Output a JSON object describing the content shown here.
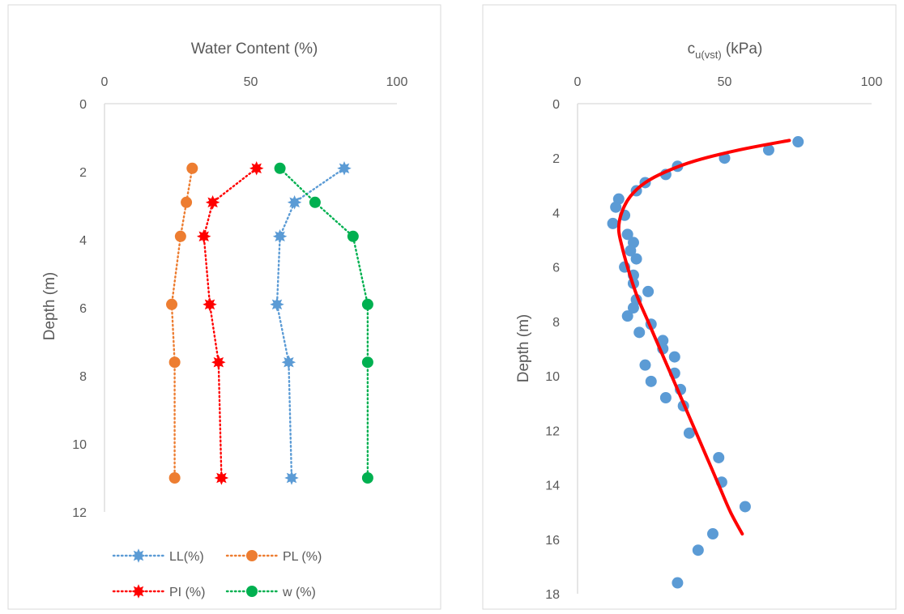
{
  "chart_data": [
    {
      "type": "line",
      "title": "Water Content (%)",
      "xlabel": "Water Content (%)",
      "ylabel": "Depth (m)",
      "x_axis_position": "top",
      "y_axis_reversed": true,
      "xlim": [
        0,
        100
      ],
      "ylim": [
        0,
        12
      ],
      "x_ticks": [
        0,
        50,
        100
      ],
      "y_ticks": [
        0,
        2,
        4,
        6,
        8,
        10,
        12
      ],
      "legend_position": "bottom",
      "grid": false,
      "series": [
        {
          "name": "LL(%)",
          "color": "#5b9bd5",
          "marker": "star",
          "line": "dotted",
          "points": [
            [
              82,
              1.9
            ],
            [
              65,
              2.9
            ],
            [
              60,
              3.9
            ],
            [
              59,
              5.9
            ],
            [
              63,
              7.6
            ],
            [
              64,
              11.0
            ]
          ]
        },
        {
          "name": "PL (%)",
          "color": "#ed7d31",
          "marker": "circle",
          "line": "dotted",
          "points": [
            [
              30,
              1.9
            ],
            [
              28,
              2.9
            ],
            [
              26,
              3.9
            ],
            [
              23,
              5.9
            ],
            [
              24,
              7.6
            ],
            [
              24,
              11.0
            ]
          ]
        },
        {
          "name": "PI (%)",
          "color": "#ff0000",
          "marker": "star",
          "line": "dotted",
          "points": [
            [
              52,
              1.9
            ],
            [
              37,
              2.9
            ],
            [
              34,
              3.9
            ],
            [
              36,
              5.9
            ],
            [
              39,
              7.6
            ],
            [
              40,
              11.0
            ]
          ]
        },
        {
          "name": "w (%)",
          "color": "#00b050",
          "marker": "circle",
          "line": "dotted",
          "points": [
            [
              60,
              1.9
            ],
            [
              72,
              2.9
            ],
            [
              85,
              3.9
            ],
            [
              90,
              5.9
            ],
            [
              90,
              7.6
            ],
            [
              90,
              11.0
            ]
          ]
        }
      ]
    },
    {
      "type": "scatter",
      "title_main": "c",
      "title_sub": "u(vst)",
      "title_unit": " (kPa)",
      "ylabel": "Depth (m)",
      "x_axis_position": "top",
      "y_axis_reversed": true,
      "xlim": [
        0,
        100
      ],
      "ylim": [
        0,
        18
      ],
      "x_ticks": [
        0,
        50,
        100
      ],
      "y_ticks": [
        0,
        2,
        4,
        6,
        8,
        10,
        12,
        14,
        16,
        18
      ],
      "grid": false,
      "points_color": "#5b9bd5",
      "trend_color": "#ff0000",
      "points": [
        [
          75,
          1.4
        ],
        [
          65,
          1.7
        ],
        [
          50,
          2.0
        ],
        [
          34,
          2.3
        ],
        [
          30,
          2.6
        ],
        [
          23,
          2.9
        ],
        [
          20,
          3.2
        ],
        [
          14,
          3.5
        ],
        [
          13,
          3.8
        ],
        [
          16,
          4.1
        ],
        [
          12,
          4.4
        ],
        [
          17,
          4.8
        ],
        [
          19,
          5.1
        ],
        [
          18,
          5.4
        ],
        [
          20,
          5.7
        ],
        [
          16,
          6.0
        ],
        [
          19,
          6.3
        ],
        [
          19,
          6.6
        ],
        [
          24,
          6.9
        ],
        [
          20,
          7.2
        ],
        [
          19,
          7.5
        ],
        [
          17,
          7.8
        ],
        [
          25,
          8.1
        ],
        [
          21,
          8.4
        ],
        [
          29,
          8.7
        ],
        [
          29,
          9.0
        ],
        [
          33,
          9.3
        ],
        [
          23,
          9.6
        ],
        [
          33,
          9.9
        ],
        [
          25,
          10.2
        ],
        [
          35,
          10.5
        ],
        [
          30,
          10.8
        ],
        [
          36,
          11.1
        ],
        [
          38,
          12.1
        ],
        [
          48,
          13.0
        ],
        [
          49,
          13.9
        ],
        [
          57,
          14.8
        ],
        [
          46,
          15.8
        ],
        [
          41,
          16.4
        ],
        [
          34,
          17.6
        ]
      ],
      "trend_line": [
        [
          72,
          1.35
        ],
        [
          55,
          1.7
        ],
        [
          40,
          2.1
        ],
        [
          30,
          2.5
        ],
        [
          23,
          2.9
        ],
        [
          18,
          3.4
        ],
        [
          15,
          4.0
        ],
        [
          14,
          4.6
        ],
        [
          15,
          5.2
        ],
        [
          17,
          6.0
        ],
        [
          20,
          7.0
        ],
        [
          24,
          8.0
        ],
        [
          28,
          9.0
        ],
        [
          32,
          10.0
        ],
        [
          36,
          11.0
        ],
        [
          40,
          12.0
        ],
        [
          44,
          13.0
        ],
        [
          48,
          14.0
        ],
        [
          52,
          15.0
        ],
        [
          56,
          15.8
        ]
      ]
    }
  ]
}
